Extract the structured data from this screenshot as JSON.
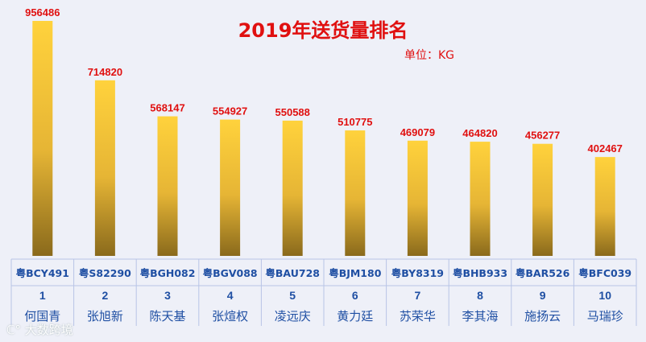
{
  "chart_data": {
    "type": "bar",
    "title": "2019年送货量排名",
    "unit_label": "单位：KG",
    "categories": [
      "粤BCY491",
      "粤S82290",
      "粤BGH082",
      "粤BGV088",
      "粤BAU728",
      "粤BJM180",
      "粤BY8319",
      "粤BHB933",
      "粤BAR526",
      "粤BFC039"
    ],
    "ranks": [
      "1",
      "2",
      "3",
      "4",
      "5",
      "6",
      "7",
      "8",
      "9",
      "10"
    ],
    "names": [
      "何国青",
      "张旭新",
      "陈天基",
      "张煊权",
      "凌远庆",
      "黄力廷",
      "苏荣华",
      "李其海",
      "施扬云",
      "马瑞珍"
    ],
    "values": [
      956486,
      714820,
      568147,
      554927,
      550588,
      510775,
      469079,
      464820,
      456277,
      402467
    ],
    "ylim": [
      0,
      956486
    ],
    "grid": false,
    "colors": {
      "bar_top": "#ffd23c",
      "bar_bottom": "#8a6a1c",
      "value_label": "#e01010",
      "category_label": "#1f4fa3",
      "name_label": "#1f4fa3",
      "table_border": "#b8c4e6"
    }
  },
  "watermark": "大数跨境"
}
